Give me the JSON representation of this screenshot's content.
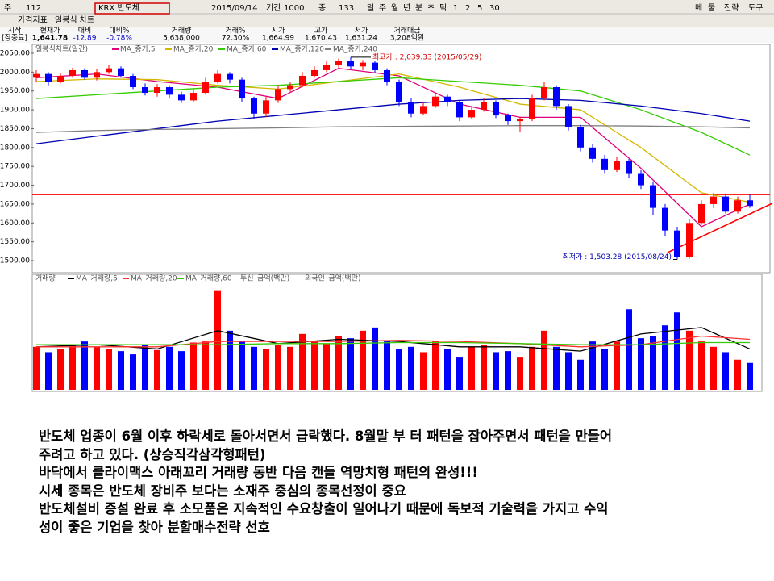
{
  "toolbar": {
    "row1": [
      "주",
      "112",
      "KRX 반도체",
      "2015/09/14",
      "기간",
      "1000",
      "종",
      "133",
      "일",
      "주",
      "월",
      "년",
      "분",
      "초",
      "틱",
      "1",
      "2",
      "5",
      "30"
    ],
    "right": [
      "메",
      "툴",
      "전략",
      "도구"
    ],
    "row2": [
      "가격지표",
      "일봉식 차트"
    ]
  },
  "quote": {
    "headers": [
      "시작",
      "현재가",
      "대비",
      "대비%",
      "거래량",
      "거래%",
      "시가",
      "고가",
      "저가",
      "거래대금"
    ],
    "values": [
      "[장중료]",
      "1,641.78",
      "-12.89",
      "-0.78%",
      "5,638,000",
      "72.30%",
      "1,664.99",
      "1,670.43",
      "1,631.24",
      "3,208억원"
    ]
  },
  "chart_data": [
    {
      "type": "candlestick",
      "label": "일봉식차트(일간)",
      "up_color": "#ff0000",
      "down_color": "#0000ff",
      "open": [
        1985,
        1995,
        1975,
        1990,
        2005,
        1985,
        2000,
        2010,
        1990,
        1960,
        1945,
        1960,
        1940,
        1925,
        1945,
        1975,
        1995,
        1980,
        1930,
        1890,
        1925,
        1955,
        1965,
        1990,
        2005,
        2020,
        2030,
        2015,
        2025,
        2005,
        1975,
        1920,
        1890,
        1910,
        1935,
        1920,
        1880,
        1900,
        1920,
        1885,
        1870,
        1875,
        1930,
        1960,
        1910,
        1855,
        1800,
        1770,
        1740,
        1765,
        1730,
        1700,
        1640,
        1580,
        1510,
        1600,
        1650,
        1670,
        1630,
        1660
      ],
      "high": [
        2005,
        2000,
        1998,
        2012,
        2010,
        2008,
        2020,
        2015,
        1995,
        1970,
        1968,
        1965,
        1948,
        1955,
        1985,
        2005,
        2000,
        1985,
        1935,
        1935,
        1965,
        1975,
        2000,
        2015,
        2030,
        2036,
        2039.33,
        2032,
        2030,
        2010,
        1980,
        1930,
        1920,
        1945,
        1940,
        1925,
        1910,
        1930,
        1925,
        1890,
        1882,
        1940,
        1975,
        1965,
        1915,
        1860,
        1810,
        1780,
        1775,
        1770,
        1740,
        1710,
        1650,
        1590,
        1610,
        1660,
        1680,
        1678,
        1670,
        1675
      ],
      "low": [
        1975,
        1965,
        1970,
        1985,
        1980,
        1978,
        1995,
        1985,
        1955,
        1938,
        1935,
        1930,
        1918,
        1920,
        1940,
        1970,
        1970,
        1920,
        1875,
        1880,
        1918,
        1948,
        1960,
        1985,
        2000,
        2012,
        2008,
        2005,
        1998,
        1965,
        1910,
        1880,
        1885,
        1905,
        1910,
        1870,
        1875,
        1895,
        1878,
        1860,
        1840,
        1870,
        1925,
        1900,
        1845,
        1790,
        1760,
        1730,
        1735,
        1720,
        1690,
        1620,
        1565,
        1503.28,
        1505,
        1595,
        1640,
        1625,
        1625,
        1640
      ],
      "close": [
        1995,
        1975,
        1990,
        2005,
        1985,
        2000,
        2010,
        1990,
        1960,
        1945,
        1960,
        1940,
        1925,
        1945,
        1975,
        1995,
        1980,
        1930,
        1890,
        1925,
        1955,
        1965,
        1990,
        2005,
        2020,
        2030,
        2015,
        2025,
        2005,
        1975,
        1920,
        1890,
        1910,
        1935,
        1920,
        1880,
        1900,
        1920,
        1885,
        1870,
        1875,
        1930,
        1960,
        1910,
        1855,
        1800,
        1770,
        1740,
        1765,
        1730,
        1700,
        1640,
        1580,
        1510,
        1600,
        1650,
        1670,
        1630,
        1660,
        1645
      ],
      "series": [
        {
          "name": "MA_종가,5",
          "color": "#e0007a",
          "x": [
            0,
            5,
            10,
            15,
            20,
            25,
            30,
            35,
            40,
            45,
            50,
            55,
            59
          ],
          "values": [
            1985,
            1995,
            1975,
            1960,
            1930,
            2010,
            1990,
            1915,
            1880,
            1880,
            1745,
            1590,
            1650
          ]
        },
        {
          "name": "MA_종가,20",
          "color": "#d4b800",
          "x": [
            0,
            5,
            10,
            15,
            20,
            25,
            30,
            35,
            40,
            45,
            50,
            55,
            59
          ],
          "values": [
            1975,
            1982,
            1980,
            1965,
            1955,
            1975,
            1995,
            1960,
            1915,
            1900,
            1800,
            1680,
            1655
          ]
        },
        {
          "name": "MA_종가,60",
          "color": "#33cc00",
          "x": [
            0,
            5,
            10,
            15,
            20,
            25,
            30,
            35,
            40,
            45,
            50,
            55,
            59
          ],
          "values": [
            1930,
            1940,
            1950,
            1960,
            1965,
            1975,
            1985,
            1975,
            1965,
            1950,
            1900,
            1840,
            1780
          ]
        },
        {
          "name": "MA_종가,120",
          "color": "#0000b0",
          "x": [
            0,
            5,
            10,
            15,
            20,
            25,
            30,
            35,
            40,
            45,
            50,
            55,
            59
          ],
          "values": [
            1810,
            1830,
            1850,
            1870,
            1885,
            1900,
            1915,
            1925,
            1930,
            1925,
            1910,
            1890,
            1870
          ]
        },
        {
          "name": "MA_종가,240",
          "color": "#808080",
          "x": [
            0,
            5,
            10,
            15,
            20,
            25,
            30,
            35,
            40,
            45,
            50,
            55,
            59
          ],
          "values": [
            1840,
            1845,
            1848,
            1850,
            1852,
            1855,
            1856,
            1857,
            1858,
            1858,
            1857,
            1855,
            1852
          ]
        }
      ],
      "hline": 1675,
      "annotations": [
        {
          "text": "최고가 : 2,039.33 (2015/05/29)"
        },
        {
          "text": "최저가 : 1,503.28 (2015/08/24)"
        }
      ],
      "ylim": [
        1468,
        2067
      ],
      "yticks": [
        {
          "value": 1500,
          "label": "1500.00"
        },
        {
          "value": 1550,
          "label": "1550.00"
        },
        {
          "value": 1600,
          "label": "1600.00"
        },
        {
          "value": 1650,
          "label": "1650.00"
        },
        {
          "value": 1700,
          "label": "1700.00"
        },
        {
          "value": 1750,
          "label": "1750.00"
        },
        {
          "value": 1800,
          "label": "1800.00"
        },
        {
          "value": 1850,
          "label": "1850.00"
        },
        {
          "value": 1900,
          "label": "1900.00"
        },
        {
          "value": 1950,
          "label": "1950.00"
        },
        {
          "value": 2000,
          "label": "2000.00"
        },
        {
          "value": 2050,
          "label": "2050.00"
        }
      ]
    },
    {
      "type": "bar",
      "ylim": [
        0,
        100
      ],
      "series": [
        {
          "name": "거래량",
          "values": [
            40,
            35,
            38,
            42,
            45,
            40,
            38,
            36,
            33,
            42,
            37,
            40,
            36,
            44,
            45,
            92,
            55,
            45,
            40,
            38,
            42,
            40,
            52,
            45,
            43,
            50,
            48,
            55,
            58,
            45,
            38,
            40,
            35,
            45,
            38,
            30,
            40,
            42,
            35,
            36,
            30,
            40,
            55,
            40,
            35,
            28,
            45,
            38,
            45,
            75,
            48,
            50,
            60,
            72,
            55,
            45,
            40,
            35,
            28,
            25
          ]
        },
        {
          "name": "MA_거래량,5",
          "color": "#000000",
          "x": [
            0,
            5,
            10,
            15,
            20,
            25,
            30,
            35,
            40,
            45,
            50,
            55,
            59
          ],
          "values": [
            40,
            42,
            38,
            55,
            43,
            47,
            45,
            40,
            40,
            36,
            52,
            58,
            38
          ]
        },
        {
          "name": "MA_거래량,20",
          "color": "#ff3030",
          "x": [
            0,
            5,
            10,
            15,
            20,
            25,
            30,
            35,
            40,
            45,
            50,
            55,
            59
          ],
          "values": [
            40,
            40,
            40,
            45,
            45,
            45,
            46,
            45,
            43,
            40,
            42,
            50,
            47
          ]
        },
        {
          "name": "MA_거래량,60",
          "color": "#33cc00",
          "x": [
            0,
            5,
            10,
            15,
            20,
            25,
            30,
            35,
            40,
            45,
            50,
            55,
            59
          ],
          "values": [
            42,
            42,
            42,
            42,
            43,
            43,
            44,
            44,
            43,
            42,
            42,
            44,
            44
          ]
        }
      ],
      "legend_extra": [
        "투신_금액(백만)",
        "외국인_금액(백만)"
      ]
    }
  ],
  "notes": [
    "반도체 업종이  6월 이후 하락세로 돌아서면서 급락했다. 8월말 부 터 패턴을 잡아주면서 패턴을 만들어",
    "주려고 하고 있다. (상승직각삼각형패턴)",
    "바닥에서 클라이맥스 아래꼬리 거래량 동반 다음 캔들 역망치형 패턴의 완성!!!",
    "시세 종목은 반도체 장비주 보다는 소재주 중심의 종목선정이 중요",
    "반도체설비 증설 완료 후 소모품은 지속적인 수요창출이 일어나기 때문에 독보적 기술력을 가지고 수익",
    "성이 좋은 기업을 찾아 분할매수전략 선호"
  ]
}
